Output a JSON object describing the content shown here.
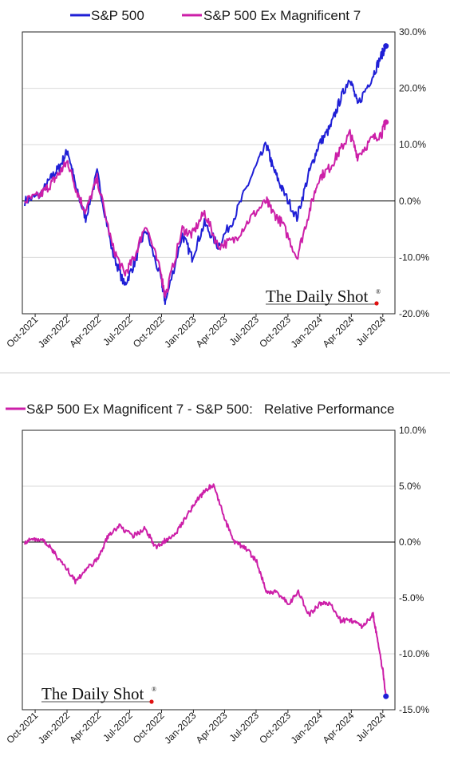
{
  "colors": {
    "sp500": "#1f1fd6",
    "ex_mag7": "#cc1fa8",
    "red_dot": "#e01010"
  },
  "watermark": "The Daily Shot",
  "watermark_mark": "®",
  "chart_data": [
    {
      "type": "line",
      "x_tick_labels": [
        "Oct-2021",
        "Jan-2022",
        "Apr-2022",
        "Jul-2022",
        "Oct-2022",
        "Jan-2023",
        "Apr-2023",
        "Jul-2023",
        "Oct-2023",
        "Jan-2024",
        "Apr-2024",
        "Jul-2024"
      ],
      "y_tick_labels": [
        "30.0%",
        "20.0%",
        "10.0%",
        "0.0%",
        "-10.0%",
        "-20.0%"
      ],
      "ylim": [
        -20,
        30
      ],
      "x_range": [
        "2021-09",
        "2024-07"
      ],
      "grid": true,
      "legend_position": "top",
      "series": [
        {
          "name": "S&P 500",
          "color": "#1f1fd6",
          "x": [
            "2021-09-01",
            "2021-10-15",
            "2021-11-15",
            "2021-12-10",
            "2022-01-03",
            "2022-01-28",
            "2022-02-24",
            "2022-03-29",
            "2022-05-12",
            "2022-06-16",
            "2022-07-15",
            "2022-08-16",
            "2022-09-30",
            "2022-10-12",
            "2022-11-30",
            "2022-12-28",
            "2023-02-02",
            "2023-03-13",
            "2023-04-28",
            "2023-06-15",
            "2023-07-31",
            "2023-08-18",
            "2023-09-15",
            "2023-10-27",
            "2023-12-01",
            "2023-12-29",
            "2024-01-31",
            "2024-02-29",
            "2024-03-28",
            "2024-04-19",
            "2024-05-31",
            "2024-06-28",
            "2024-07-10"
          ],
          "y": [
            0,
            1,
            4,
            6,
            9,
            2,
            -3,
            5,
            -9,
            -15,
            -11,
            -5,
            -14,
            -18,
            -6,
            -10,
            -4,
            -8,
            -3,
            4,
            10,
            6,
            2,
            -3,
            5,
            10,
            13,
            18,
            22,
            17,
            22,
            26,
            27.5
          ]
        },
        {
          "name": "S&P 500 Ex Magnificent 7",
          "color": "#cc1fa8",
          "x": [
            "2021-09-01",
            "2021-10-15",
            "2021-11-15",
            "2021-12-10",
            "2022-01-03",
            "2022-01-28",
            "2022-02-24",
            "2022-03-29",
            "2022-05-12",
            "2022-06-16",
            "2022-07-15",
            "2022-08-16",
            "2022-09-30",
            "2022-10-12",
            "2022-11-30",
            "2022-12-28",
            "2023-02-02",
            "2023-03-13",
            "2023-04-28",
            "2023-06-15",
            "2023-07-31",
            "2023-08-18",
            "2023-09-15",
            "2023-10-27",
            "2023-12-01",
            "2023-12-29",
            "2024-01-31",
            "2024-02-29",
            "2024-03-28",
            "2024-04-19",
            "2024-05-31",
            "2024-06-28",
            "2024-07-10"
          ],
          "y": [
            0,
            1,
            3,
            5,
            7,
            2,
            -2,
            4,
            -8,
            -13,
            -10,
            -4,
            -13,
            -17,
            -5,
            -6,
            -2,
            -8,
            -7,
            -3,
            0,
            -2,
            -4,
            -10,
            -2,
            4,
            6,
            9,
            12,
            8,
            11,
            12,
            14
          ]
        }
      ]
    },
    {
      "type": "line",
      "x_tick_labels": [
        "Oct-2021",
        "Jan-2022",
        "Apr-2022",
        "Jul-2022",
        "Oct-2022",
        "Jan-2023",
        "Apr-2023",
        "Jul-2023",
        "Oct-2023",
        "Jan-2024",
        "Apr-2024",
        "Jul-2024"
      ],
      "y_tick_labels": [
        "10.0%",
        "5.0%",
        "0.0%",
        "-5.0%",
        "-10.0%",
        "-15.0%"
      ],
      "ylim": [
        -15,
        10
      ],
      "x_range": [
        "2021-09",
        "2024-07"
      ],
      "grid": true,
      "legend_position": "top",
      "series": [
        {
          "name": "S&P 500 Ex Magnificent 7 - S&P 500:   Relative Performance",
          "color": "#cc1fa8",
          "x": [
            "2021-09-01",
            "2021-10-01",
            "2021-11-01",
            "2021-12-01",
            "2022-01-03",
            "2022-01-25",
            "2022-02-24",
            "2022-03-31",
            "2022-04-29",
            "2022-06-01",
            "2022-07-08",
            "2022-08-15",
            "2022-09-15",
            "2022-10-14",
            "2022-11-15",
            "2022-12-15",
            "2023-01-06",
            "2023-02-01",
            "2023-02-28",
            "2023-03-31",
            "2023-04-28",
            "2023-06-01",
            "2023-07-03",
            "2023-08-01",
            "2023-08-31",
            "2023-10-02",
            "2023-10-31",
            "2023-12-01",
            "2024-01-02",
            "2024-02-01",
            "2024-03-01",
            "2024-04-01",
            "2024-05-01",
            "2024-06-03",
            "2024-06-14",
            "2024-07-01",
            "2024-07-10"
          ],
          "y": [
            0,
            0.3,
            0,
            -1.2,
            -2.5,
            -3.5,
            -2.5,
            -1.5,
            0.5,
            1.5,
            0.5,
            1.2,
            -0.5,
            0.2,
            1.0,
            2.5,
            3.5,
            4.5,
            5.2,
            2.2,
            0,
            -0.5,
            -1.8,
            -4.5,
            -4.5,
            -5.5,
            -4.5,
            -6.5,
            -5.5,
            -5.5,
            -7.0,
            -7.0,
            -7.5,
            -6.5,
            -8.5,
            -11.5,
            -13.8
          ]
        }
      ]
    }
  ]
}
